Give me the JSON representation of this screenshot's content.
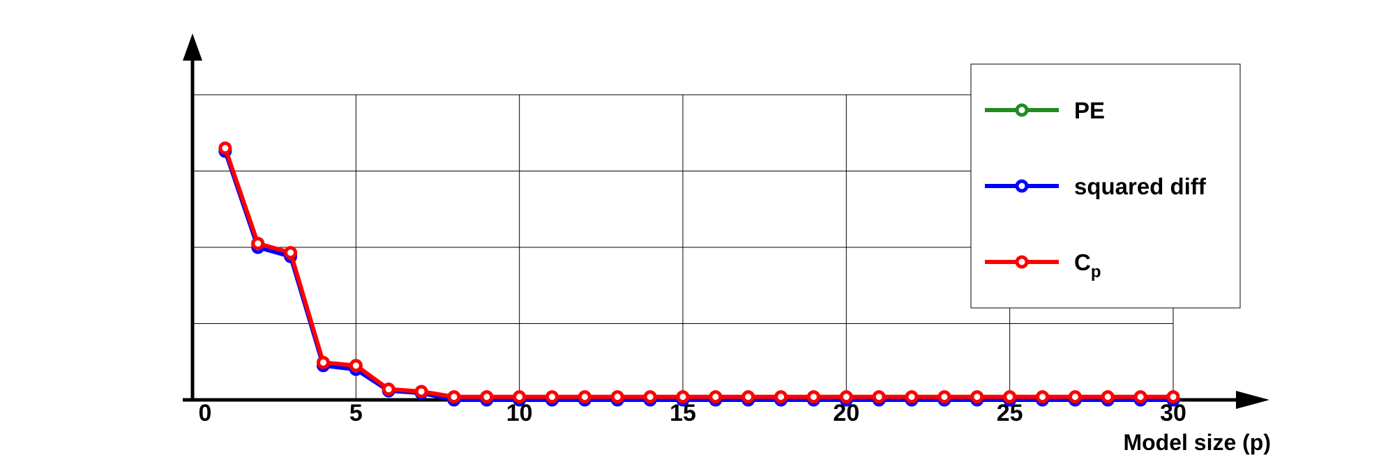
{
  "chart_data": {
    "type": "line",
    "title": "",
    "xlabel": "Model size (p)",
    "ylabel": "",
    "xlim": [
      0,
      30
    ],
    "ylim": [
      0,
      4
    ],
    "x_ticks": [
      0,
      5,
      10,
      15,
      20,
      25,
      30
    ],
    "x_tick_labels": [
      "0",
      "5",
      "10",
      "15",
      "20",
      "25",
      "30"
    ],
    "y_ticks_labeled": false,
    "grid": true,
    "legend_position": "top-right",
    "x": [
      1,
      2,
      3,
      4,
      5,
      6,
      7,
      8,
      9,
      10,
      11,
      12,
      13,
      14,
      15,
      16,
      17,
      18,
      19,
      20,
      21,
      22,
      23,
      24,
      25,
      26,
      27,
      28,
      29,
      30
    ],
    "series": [
      {
        "name": "PE",
        "color": "#228b22",
        "values": [
          3.28,
          2.05,
          1.92,
          0.48,
          0.44,
          0.12,
          0.1,
          0.03,
          0.03,
          0.03,
          0.03,
          0.03,
          0.03,
          0.03,
          0.03,
          0.03,
          0.03,
          0.03,
          0.03,
          0.03,
          0.03,
          0.03,
          0.03,
          0.03,
          0.03,
          0.03,
          0.03,
          0.03,
          0.03,
          0.03
        ]
      },
      {
        "name": "squared diff",
        "color": "#0000ff",
        "values": [
          3.26,
          2.0,
          1.88,
          0.45,
          0.4,
          0.12,
          0.09,
          0.0,
          0.0,
          0.0,
          0.0,
          0.0,
          0.0,
          0.0,
          0.0,
          0.0,
          0.0,
          0.0,
          0.0,
          0.0,
          0.0,
          0.0,
          0.0,
          0.0,
          0.0,
          0.0,
          0.0,
          0.0,
          0.0,
          0.0
        ]
      },
      {
        "name": "C",
        "name_subscript": "p",
        "color": "#ff0000",
        "values": [
          3.3,
          2.05,
          1.93,
          0.49,
          0.45,
          0.14,
          0.11,
          0.04,
          0.04,
          0.04,
          0.04,
          0.04,
          0.04,
          0.04,
          0.04,
          0.04,
          0.04,
          0.04,
          0.04,
          0.04,
          0.04,
          0.04,
          0.04,
          0.04,
          0.04,
          0.04,
          0.04,
          0.04,
          0.04,
          0.04
        ]
      }
    ]
  }
}
